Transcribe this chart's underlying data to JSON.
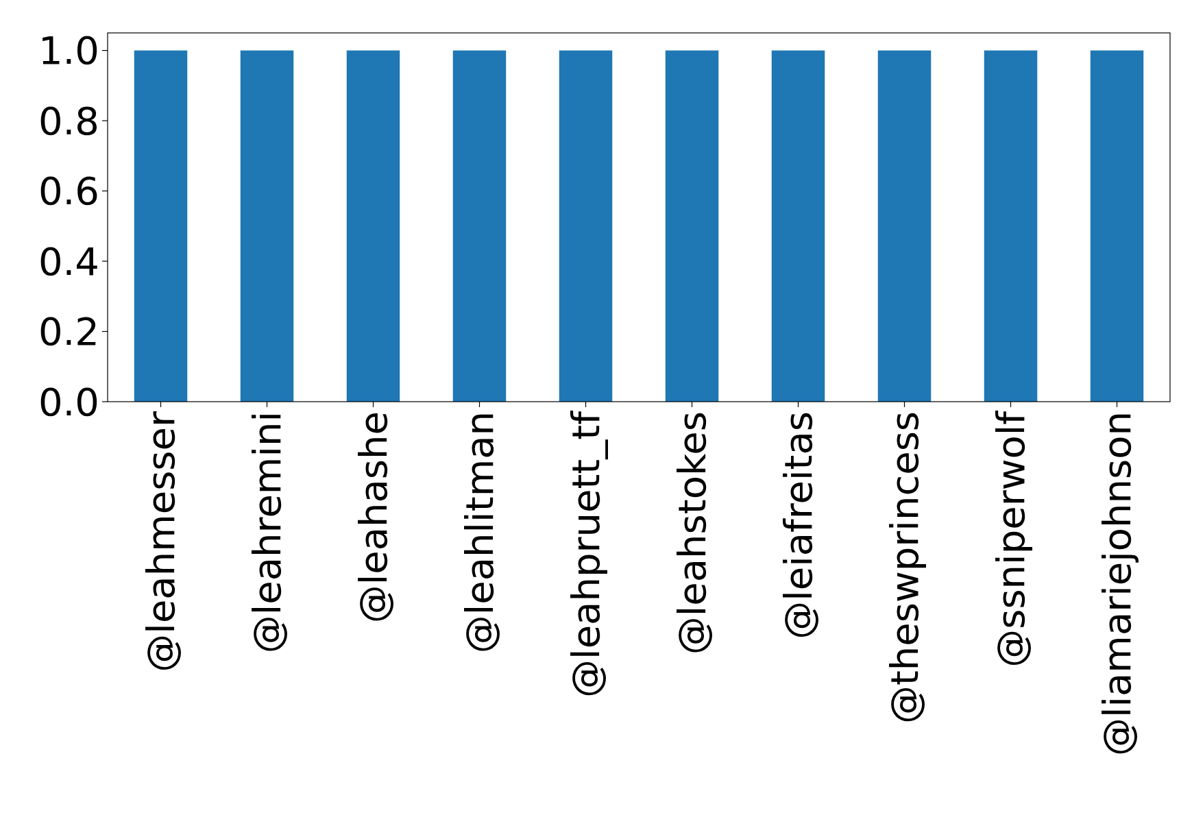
{
  "chart_data": {
    "type": "bar",
    "categories": [
      "@leahmesser",
      "@leahremini",
      "@leahashe",
      "@leahlitman",
      "@leahpruett_tf",
      "@leahstokes",
      "@leiafreitas",
      "@theswprincess",
      "@ssniperwolf",
      "@liamariejohnson"
    ],
    "values": [
      1,
      1,
      1,
      1,
      1,
      1,
      1,
      1,
      1,
      1
    ],
    "color": "#1f77b4",
    "ylim": [
      0,
      1.05
    ],
    "yticks": [
      {
        "value": 0,
        "label": "0.0"
      },
      {
        "value": 0.2,
        "label": "0.2"
      },
      {
        "value": 0.4,
        "label": "0.4"
      },
      {
        "value": 0.6,
        "label": "0.6"
      },
      {
        "value": 0.8,
        "label": "0.8"
      },
      {
        "value": 1,
        "label": "1.0"
      }
    ],
    "grid": false
  }
}
